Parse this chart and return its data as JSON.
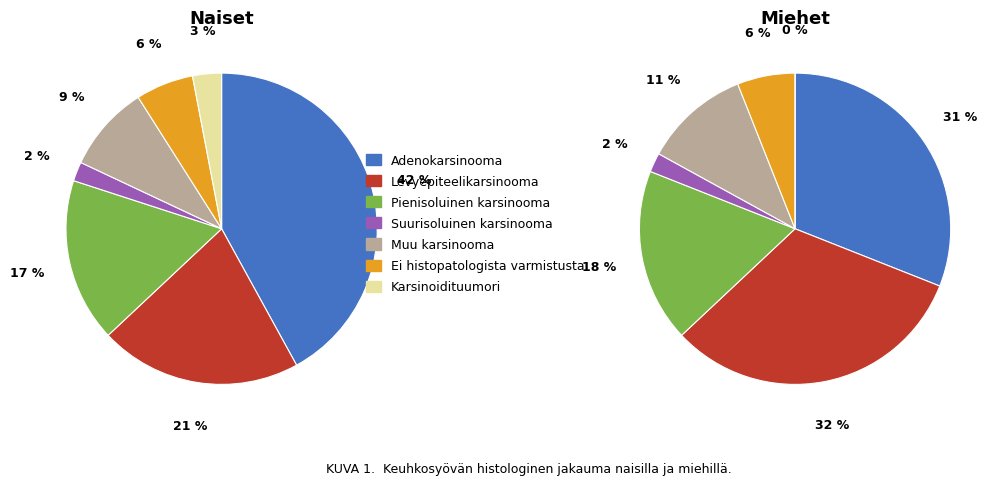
{
  "title_naiset": "Naiset",
  "title_miehet": "Miehet",
  "caption": "KUVA 1.  Keuhkosyövän histologinen jakauma naisilla ja miehillä.",
  "legend_labels": [
    "Adenokarsinooma",
    "Levyepiteelikarsinooma",
    "Pienisoluinen karsinooma",
    "Suurisoluinen karsinooma",
    "Muu karsinooma",
    "Ei histopatologista varmistusta",
    "Karsinoidituumori"
  ],
  "colors": [
    "#4472C4",
    "#C0392B",
    "#7AB648",
    "#9B59B6",
    "#B8A898",
    "#E8A020",
    "#E8E4A0"
  ],
  "naiset_values": [
    42,
    21,
    17,
    2,
    9,
    6,
    3
  ],
  "miehet_values": [
    31,
    32,
    18,
    2,
    11,
    6,
    0
  ],
  "naiset_labels": [
    "42 %",
    "21 %",
    "17 %",
    "2 %",
    "9 %",
    "6 %",
    "3 %"
  ],
  "miehet_labels": [
    "31 %",
    "32 %",
    "18 %",
    "2 %",
    "11 %",
    "6 %",
    "0 %"
  ],
  "background_color": "#FFFFFF",
  "naiset_startangle": 90,
  "miehet_startangle": 90
}
